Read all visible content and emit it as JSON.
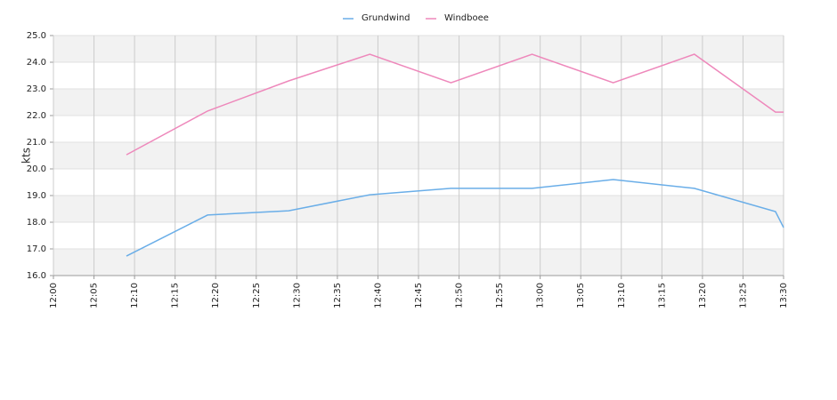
{
  "chart_data": {
    "type": "line",
    "y_label": "kts",
    "x": [
      "12:09",
      "12:19",
      "12:29",
      "12:39",
      "12:49",
      "12:59",
      "13:09",
      "13:19",
      "13:29",
      "13:30"
    ],
    "series": [
      {
        "name": "Grundwind",
        "color": "#6aaee8",
        "values": [
          16.73,
          18.27,
          18.43,
          19.03,
          19.27,
          19.27,
          19.6,
          19.27,
          18.4,
          17.8
        ]
      },
      {
        "name": "Windboee",
        "color": "#ee88bb",
        "values": [
          20.53,
          22.17,
          23.3,
          24.3,
          23.23,
          24.3,
          23.23,
          24.3,
          22.13,
          22.13
        ]
      }
    ],
    "xlim": [
      "12:00",
      "13:30"
    ],
    "xticks": [
      "12:00",
      "12:05",
      "12:10",
      "12:15",
      "12:20",
      "12:25",
      "12:30",
      "12:35",
      "12:40",
      "12:45",
      "12:50",
      "12:55",
      "13:00",
      "13:05",
      "13:10",
      "13:15",
      "13:20",
      "13:25",
      "13:30"
    ],
    "ylim": [
      16,
      25
    ],
    "yticks": [
      {
        "value": 16,
        "label": "16.0"
      },
      {
        "value": 17,
        "label": "17.0"
      },
      {
        "value": 18,
        "label": "18.0"
      },
      {
        "value": 19,
        "label": "19.0"
      },
      {
        "value": 20,
        "label": "20.0"
      },
      {
        "value": 21,
        "label": "21.0"
      },
      {
        "value": 22,
        "label": "22.0"
      },
      {
        "value": 23,
        "label": "23.0"
      },
      {
        "value": 24,
        "label": "24.0"
      },
      {
        "value": 25,
        "label": "25.0"
      }
    ],
    "grid": true,
    "legend": "top"
  }
}
